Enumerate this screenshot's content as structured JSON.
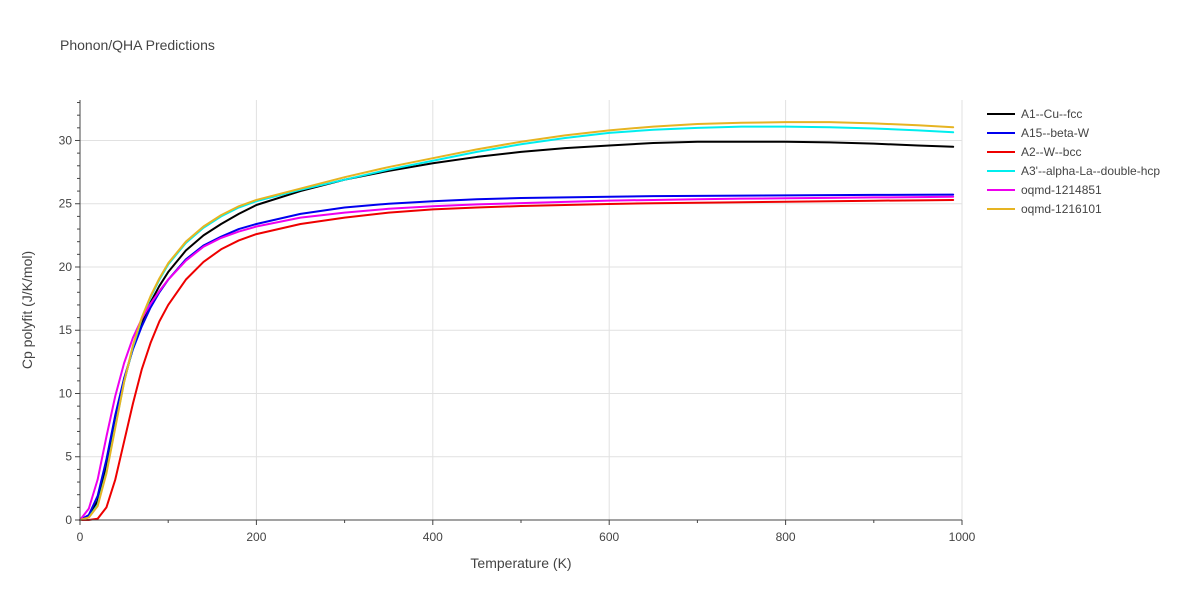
{
  "chart_data": {
    "type": "line",
    "title": "Phonon/QHA Predictions",
    "xlabel": "Temperature (K)",
    "ylabel": "Cp polyfit (J/K/mol)",
    "xlim": [
      0,
      1000
    ],
    "ylim": [
      0,
      33.2
    ],
    "xticks": [
      0,
      200,
      400,
      600,
      800,
      1000
    ],
    "yticks": [
      0,
      5,
      10,
      15,
      20,
      25,
      30
    ],
    "grid": true,
    "legend_position": "right",
    "series": [
      {
        "name": "A1--Cu--fcc",
        "color": "#000000",
        "x": [
          0,
          10,
          20,
          30,
          40,
          50,
          60,
          70,
          80,
          90,
          100,
          120,
          140,
          160,
          180,
          200,
          250,
          300,
          350,
          400,
          450,
          500,
          550,
          600,
          650,
          700,
          750,
          800,
          850,
          900,
          950,
          990
        ],
        "y": [
          0,
          0.3,
          1.5,
          4.2,
          7.8,
          11.0,
          13.6,
          15.6,
          17.2,
          18.5,
          19.6,
          21.3,
          22.5,
          23.4,
          24.2,
          24.9,
          26.0,
          26.9,
          27.6,
          28.2,
          28.7,
          29.1,
          29.4,
          29.6,
          29.8,
          29.9,
          29.9,
          29.9,
          29.85,
          29.75,
          29.6,
          29.5
        ]
      },
      {
        "name": "A15--beta-W",
        "color": "#0000ee",
        "x": [
          0,
          10,
          20,
          30,
          40,
          50,
          60,
          70,
          80,
          90,
          100,
          120,
          140,
          160,
          180,
          200,
          250,
          300,
          350,
          400,
          450,
          500,
          550,
          600,
          650,
          700,
          750,
          800,
          850,
          900,
          950,
          990
        ],
        "y": [
          0,
          0.4,
          1.9,
          4.8,
          8.3,
          11.2,
          13.5,
          15.3,
          16.8,
          18.0,
          19.0,
          20.6,
          21.7,
          22.4,
          23.0,
          23.4,
          24.2,
          24.7,
          25.0,
          25.2,
          25.35,
          25.45,
          25.5,
          25.55,
          25.6,
          25.62,
          25.64,
          25.66,
          25.68,
          25.7,
          25.71,
          25.72
        ]
      },
      {
        "name": "A2--W--bcc",
        "color": "#ee0000",
        "x": [
          0,
          10,
          20,
          30,
          40,
          50,
          60,
          70,
          80,
          90,
          100,
          120,
          140,
          160,
          180,
          200,
          250,
          300,
          350,
          400,
          450,
          500,
          550,
          600,
          650,
          700,
          750,
          800,
          850,
          900,
          950,
          990
        ],
        "y": [
          0,
          0.0,
          0.1,
          1.0,
          3.2,
          6.2,
          9.2,
          11.9,
          14.0,
          15.7,
          17.0,
          19.0,
          20.4,
          21.4,
          22.1,
          22.6,
          23.4,
          23.9,
          24.3,
          24.55,
          24.7,
          24.82,
          24.9,
          24.98,
          25.04,
          25.08,
          25.12,
          25.16,
          25.2,
          25.24,
          25.27,
          25.3
        ]
      },
      {
        "name": "A3'--alpha-La--double-hcp",
        "color": "#00eeee",
        "x": [
          0,
          10,
          20,
          30,
          40,
          50,
          60,
          70,
          80,
          90,
          100,
          120,
          140,
          160,
          180,
          200,
          250,
          300,
          350,
          400,
          450,
          500,
          550,
          600,
          650,
          700,
          750,
          800,
          850,
          900,
          950,
          990
        ],
        "y": [
          0,
          0.2,
          1.2,
          3.8,
          7.4,
          10.9,
          13.7,
          15.9,
          17.6,
          19.0,
          20.2,
          21.9,
          23.1,
          24.0,
          24.7,
          25.2,
          26.1,
          26.9,
          27.7,
          28.4,
          29.1,
          29.7,
          30.2,
          30.6,
          30.85,
          31.0,
          31.1,
          31.1,
          31.05,
          30.95,
          30.8,
          30.65
        ]
      },
      {
        "name": "oqmd-1214851",
        "color": "#ee00ee",
        "x": [
          0,
          10,
          20,
          30,
          40,
          50,
          60,
          70,
          80,
          90,
          100,
          120,
          140,
          160,
          180,
          200,
          250,
          300,
          350,
          400,
          450,
          500,
          550,
          600,
          650,
          700,
          750,
          800,
          850,
          900,
          950,
          990
        ],
        "y": [
          0,
          0.9,
          3.2,
          6.6,
          9.8,
          12.4,
          14.4,
          15.9,
          17.1,
          18.1,
          19.0,
          20.5,
          21.6,
          22.3,
          22.8,
          23.2,
          23.9,
          24.3,
          24.6,
          24.8,
          24.95,
          25.05,
          25.15,
          25.25,
          25.3,
          25.35,
          25.4,
          25.43,
          25.46,
          25.5,
          25.52,
          25.55
        ]
      },
      {
        "name": "oqmd-1216101",
        "color": "#e6b422",
        "x": [
          0,
          10,
          20,
          30,
          40,
          50,
          60,
          70,
          80,
          90,
          100,
          120,
          140,
          160,
          180,
          200,
          250,
          300,
          350,
          400,
          450,
          500,
          550,
          600,
          650,
          700,
          750,
          800,
          850,
          900,
          950,
          990
        ],
        "y": [
          0,
          0.2,
          1.1,
          3.7,
          7.3,
          10.9,
          13.8,
          16.0,
          17.7,
          19.1,
          20.3,
          22.0,
          23.2,
          24.1,
          24.8,
          25.3,
          26.2,
          27.1,
          27.9,
          28.6,
          29.3,
          29.9,
          30.4,
          30.8,
          31.1,
          31.3,
          31.4,
          31.45,
          31.45,
          31.35,
          31.2,
          31.05
        ]
      }
    ]
  }
}
